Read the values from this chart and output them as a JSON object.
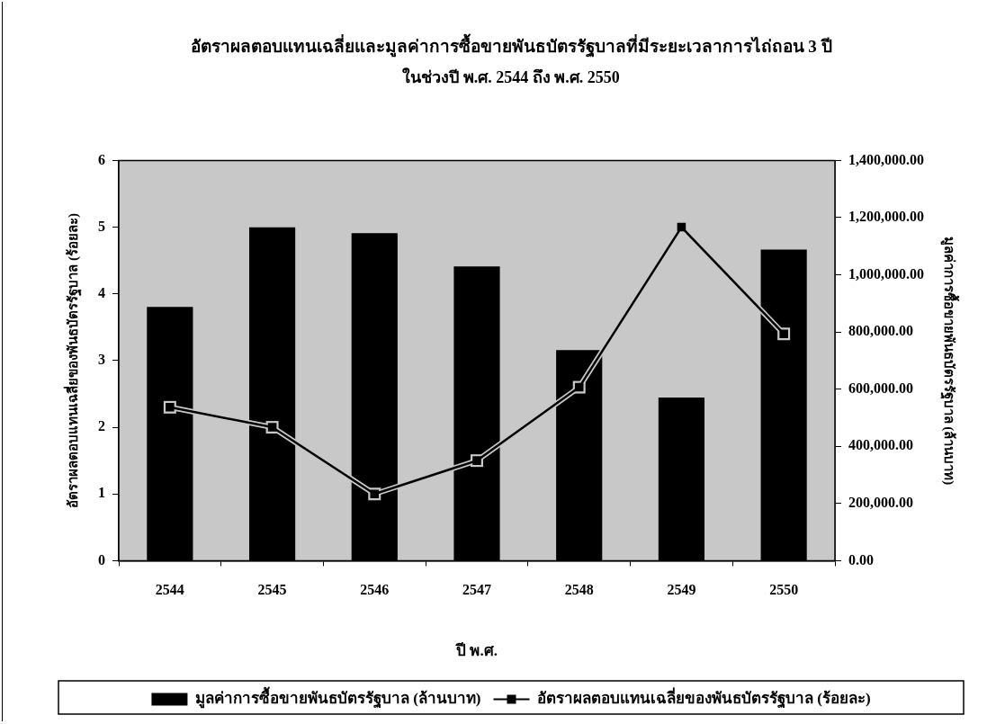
{
  "chart_data": {
    "type": "bar",
    "title": "อัตราผลตอบแทนเฉลี่ยและมูลค่าการซื้อขายพันธบัตรรัฐบาลที่มีระยะเวลาการไถ่ถอน 3 ปี",
    "subtitle": "ในช่วงปี พ.ศ. 2544 ถึง พ.ศ. 2550",
    "xlabel": "ปี พ.ศ.",
    "ylabel": "อัตราผลตอบแทนเฉลี่ยของพันธบัตรรัฐบาล (ร้อยละ)",
    "y2label": "มูลค่าการซื้อขายพันธบัตรรัฐบาล (ล้านบาท)",
    "categories": [
      "2544",
      "2545",
      "2546",
      "2547",
      "2548",
      "2549",
      "2550"
    ],
    "series": [
      {
        "name": "มูลค่าการซื้อขายพันธบัตรรัฐบาล (ล้านบาท)",
        "type": "bar",
        "axis": "y2",
        "color": "#000000",
        "values": [
          888000,
          1166000,
          1146000,
          1029000,
          737000,
          571000,
          1088000
        ]
      },
      {
        "name": "อัตราผลตอบแทนเฉลี่ยของพันธบัตรรัฐบาล (ร้อยละ)",
        "type": "line",
        "color": "#000000",
        "marker": "square",
        "values": [
          2.3,
          2.0,
          1.0,
          1.5,
          2.6,
          5.0,
          3.4
        ]
      }
    ],
    "ylim": [
      0,
      6
    ],
    "yticks": [
      0,
      1,
      2,
      3,
      4,
      5,
      6
    ],
    "y2lim": [
      0,
      1400000
    ],
    "y2ticks": [
      {
        "value": 0,
        "label": "0.00"
      },
      {
        "value": 200000,
        "label": "200,000.00"
      },
      {
        "value": 400000,
        "label": "400,000.00"
      },
      {
        "value": 600000,
        "label": "600,000.00"
      },
      {
        "value": 800000,
        "label": "800,000.00"
      },
      {
        "value": 1000000,
        "label": "1,000,000.00"
      },
      {
        "value": 1200000,
        "label": "1,200,000.00"
      },
      {
        "value": 1400000,
        "label": "1,400,000.00"
      }
    ],
    "grid": false,
    "legend": "bottom"
  }
}
